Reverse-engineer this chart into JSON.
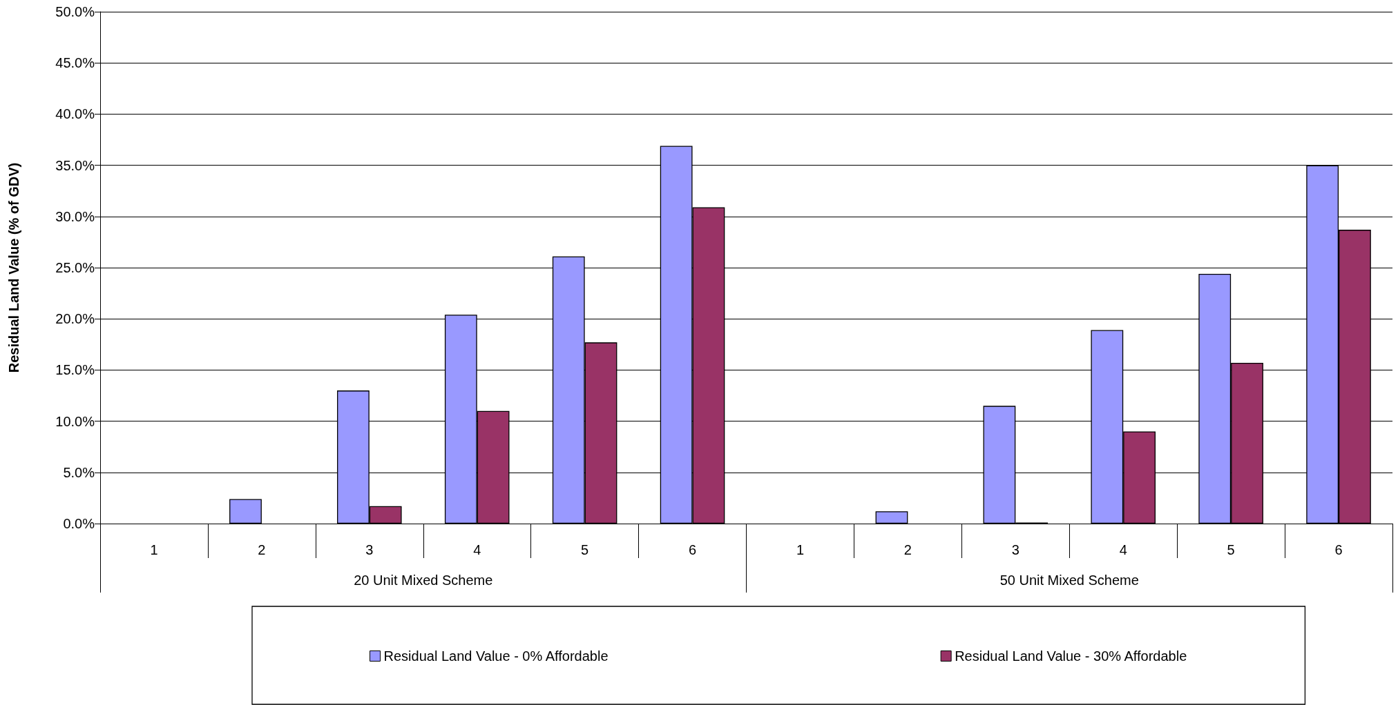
{
  "chart_data": {
    "type": "bar",
    "ylabel": "Residual Land Value (% of GDV)",
    "categories": [
      "1",
      "2",
      "3",
      "4",
      "5",
      "6",
      "1",
      "2",
      "3",
      "4",
      "5",
      "6"
    ],
    "annotations": [
      "20 Unit Mixed Scheme",
      "50 Unit Mixed Scheme"
    ],
    "series": [
      {
        "name": "Residual Land Value - 0% Affordable",
        "color": "#9999ff",
        "values": [
          0,
          2.4,
          13.0,
          20.4,
          26.1,
          36.9,
          0,
          1.2,
          11.5,
          18.9,
          24.4,
          35.0
        ]
      },
      {
        "name": "Residual Land Value - 30% Affordable",
        "color": "#993366",
        "values": [
          0,
          0,
          1.7,
          11.0,
          17.7,
          30.9,
          0,
          0,
          0.1,
          9.0,
          15.7,
          28.7
        ]
      }
    ],
    "ylim": [
      0,
      50
    ],
    "yticks": [
      {
        "value": 0,
        "label": "0.0%"
      },
      {
        "value": 5,
        "label": "5.0%"
      },
      {
        "value": 10,
        "label": "10.0%"
      },
      {
        "value": 15,
        "label": "15.0%"
      },
      {
        "value": 20,
        "label": "20.0%"
      },
      {
        "value": 25,
        "label": "25.0%"
      },
      {
        "value": 30,
        "label": "30.0%"
      },
      {
        "value": 35,
        "label": "35.0%"
      },
      {
        "value": 40,
        "label": "40.0%"
      },
      {
        "value": 45,
        "label": "45.0%"
      },
      {
        "value": 50,
        "label": "50.0%"
      }
    ],
    "grid": "y",
    "legend": "bottom"
  }
}
